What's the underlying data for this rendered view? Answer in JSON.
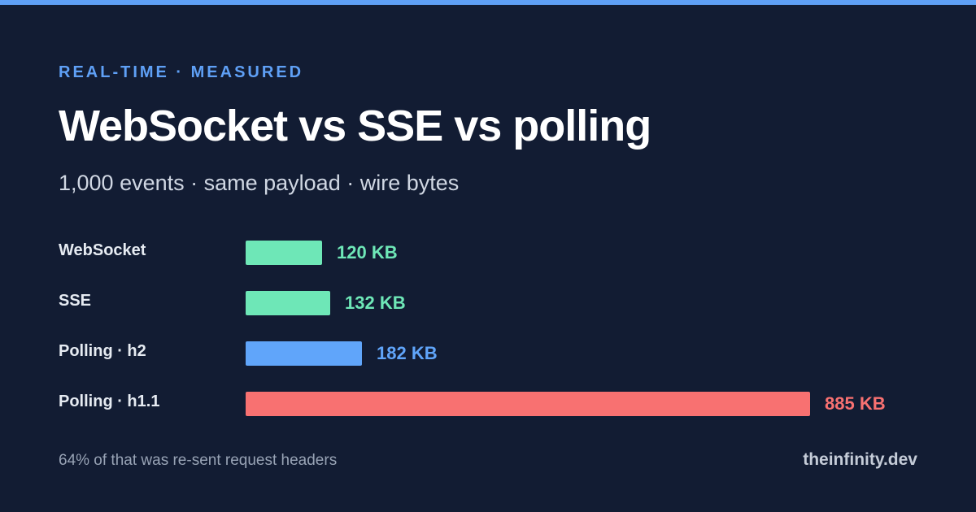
{
  "header": {
    "eyebrow": "REAL-TIME · MEASURED",
    "title": "WebSocket vs SSE vs polling",
    "subtitle": "1,000 events · same payload · wire bytes"
  },
  "chart_data": {
    "type": "bar",
    "orientation": "horizontal",
    "unit": "KB",
    "categories": [
      "WebSocket",
      "SSE",
      "Polling · h2",
      "Polling · h1.1"
    ],
    "values": [
      120,
      132,
      182,
      885
    ],
    "value_labels": [
      "120 KB",
      "132 KB",
      "182 KB",
      "885 KB"
    ],
    "colors": [
      "#6ee7b7",
      "#6ee7b7",
      "#60a5fa",
      "#f87171"
    ],
    "grid": false,
    "legend": "none"
  },
  "footer": {
    "note": "64% of that was re-sent request headers",
    "brand": "theinfinity.dev"
  }
}
